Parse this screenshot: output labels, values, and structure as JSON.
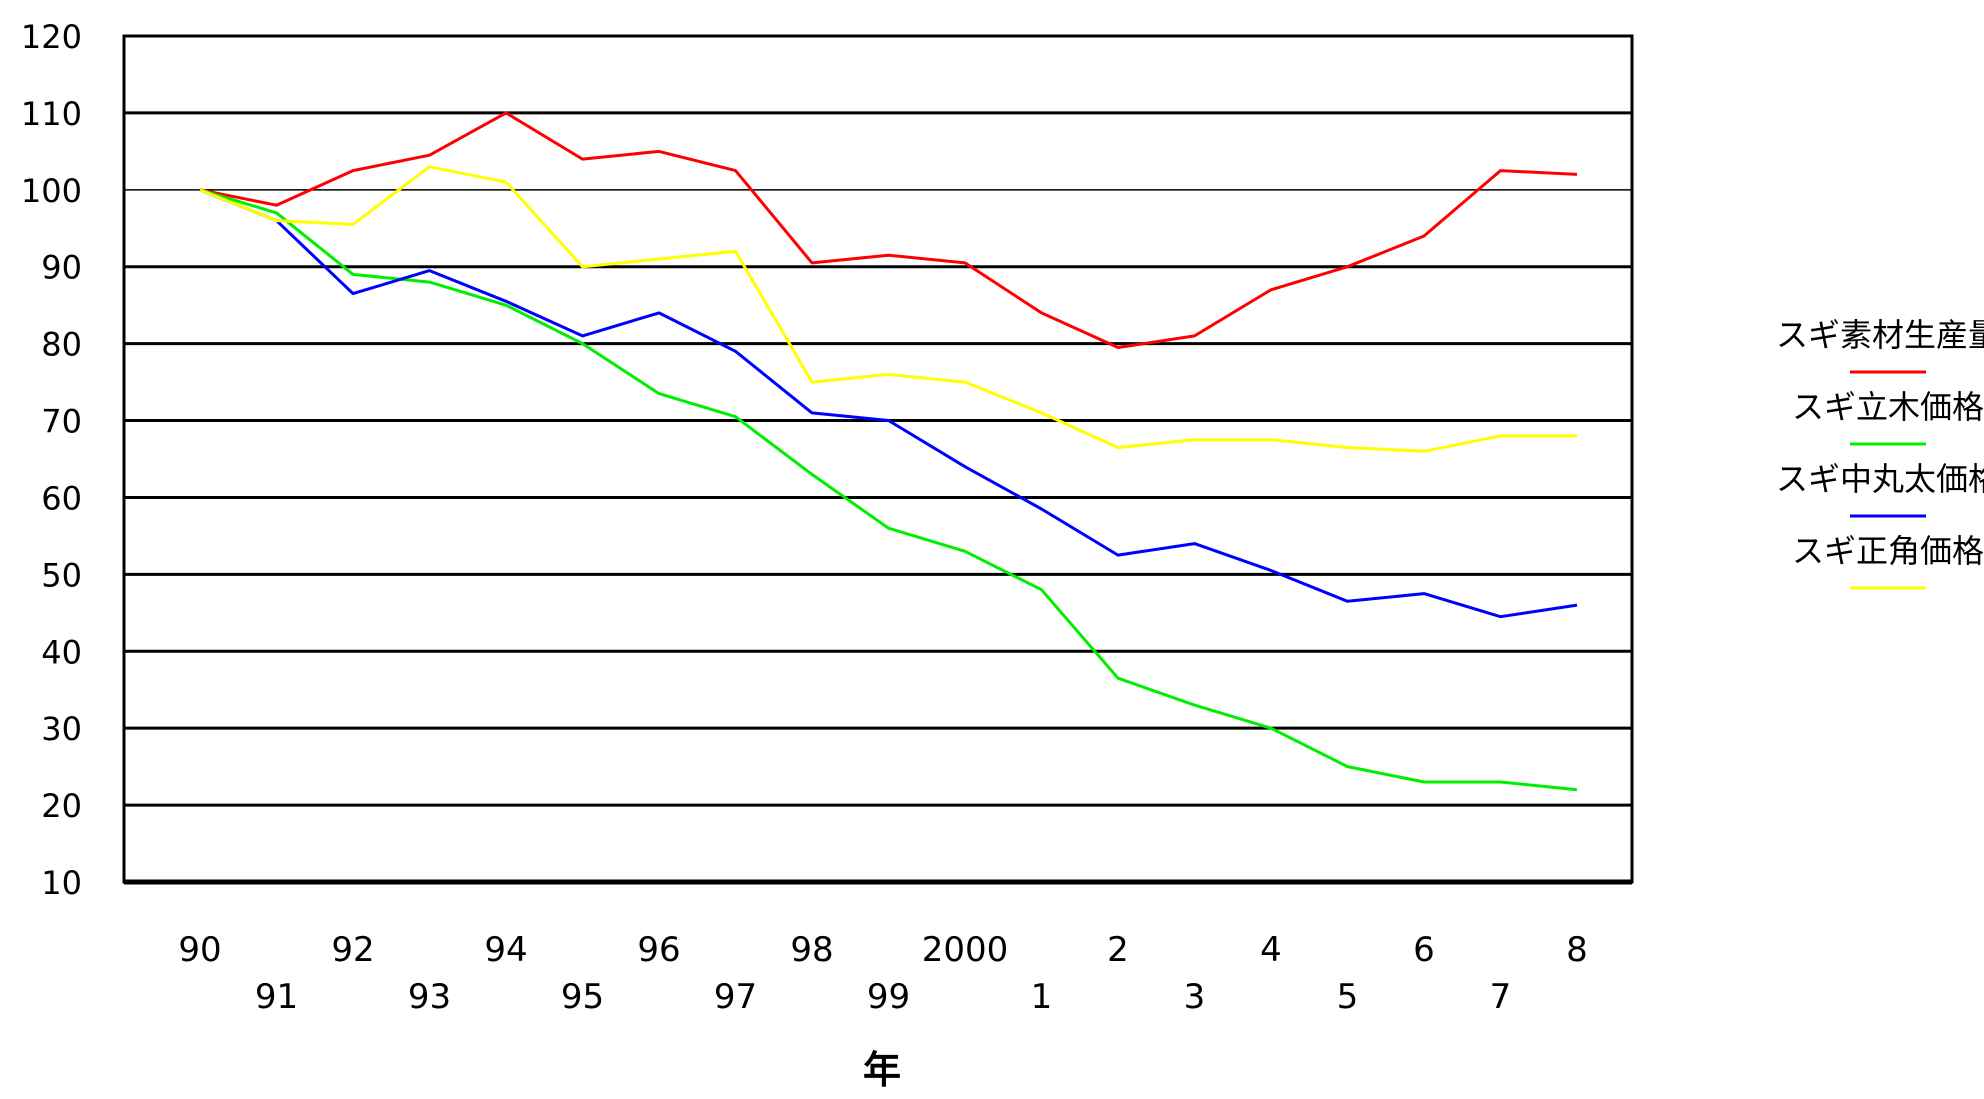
{
  "chart_data": {
    "type": "line",
    "title": "",
    "xlabel": "年",
    "ylabel": "",
    "ylim": [
      10,
      120
    ],
    "yticks": [
      10,
      20,
      30,
      40,
      50,
      60,
      70,
      80,
      90,
      100,
      110,
      120
    ],
    "grid": true,
    "legend_position": "right",
    "categories": [
      "90",
      "91",
      "92",
      "93",
      "94",
      "95",
      "96",
      "97",
      "98",
      "99",
      "2000",
      "1",
      "2",
      "3",
      "4",
      "5",
      "6",
      "7",
      "8"
    ],
    "series": [
      {
        "name": "スギ素材生産量",
        "color": "#ff0000",
        "values": [
          100,
          98,
          102.5,
          104.5,
          110,
          104,
          105,
          102.5,
          90.5,
          91.5,
          90.5,
          84,
          79.5,
          81,
          87,
          90,
          94,
          102.5,
          102
        ]
      },
      {
        "name": "スギ立木価格",
        "color": "#00ee00",
        "values": [
          100,
          97,
          89,
          88,
          85,
          80,
          73.5,
          70.5,
          63,
          56,
          53,
          48,
          36.5,
          33,
          30,
          25,
          23,
          23,
          22
        ]
      },
      {
        "name": "スギ中丸太価格",
        "color": "#0000ff",
        "values": [
          100,
          96,
          86.5,
          89.5,
          85.5,
          81,
          84,
          79,
          71,
          70,
          64,
          58.5,
          52.5,
          54,
          50.5,
          46.5,
          47.5,
          44.5,
          46
        ]
      },
      {
        "name": "スギ正角価格",
        "color": "#ffff00",
        "values": [
          100,
          96,
          95.5,
          103,
          101,
          90,
          91,
          92,
          75,
          76,
          75,
          71,
          66.5,
          67.5,
          67.5,
          66.5,
          66,
          68,
          68
        ]
      }
    ]
  }
}
